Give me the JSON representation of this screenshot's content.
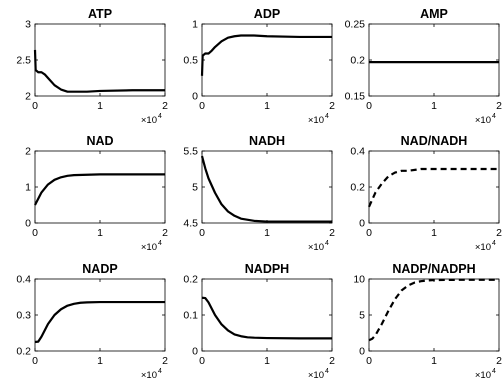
{
  "chart_data": [
    {
      "type": "line",
      "title": "ATP",
      "ylim": [
        2,
        3
      ],
      "yticks": [
        "2",
        "2.5",
        "3"
      ],
      "xlim": [
        0,
        2
      ],
      "xticks": [
        "0",
        "1",
        "2"
      ],
      "x_exponent": "×10",
      "x_exponent_power": "4",
      "series": [
        {
          "style": "solid",
          "x": [
            0,
            0.01,
            0.05,
            0.1,
            0.15,
            0.2,
            0.3,
            0.4,
            0.5,
            0.6,
            0.8,
            1,
            1.5,
            2
          ],
          "y": [
            2.64,
            2.36,
            2.33,
            2.33,
            2.3,
            2.25,
            2.15,
            2.09,
            2.06,
            2.06,
            2.06,
            2.07,
            2.08,
            2.08
          ]
        }
      ]
    },
    {
      "type": "line",
      "title": "ADP",
      "ylim": [
        0,
        1
      ],
      "yticks": [
        "0",
        "0.5",
        "1"
      ],
      "xlim": [
        0,
        2
      ],
      "xticks": [
        "0",
        "1",
        "2"
      ],
      "x_exponent": "×10",
      "x_exponent_power": "4",
      "series": [
        {
          "style": "solid",
          "x": [
            0,
            0.01,
            0.05,
            0.1,
            0.15,
            0.2,
            0.3,
            0.4,
            0.5,
            0.6,
            0.8,
            1,
            1.5,
            2
          ],
          "y": [
            0.28,
            0.56,
            0.59,
            0.59,
            0.63,
            0.68,
            0.76,
            0.81,
            0.83,
            0.84,
            0.84,
            0.83,
            0.82,
            0.82
          ]
        }
      ]
    },
    {
      "type": "line",
      "title": "AMP",
      "ylim": [
        0.15,
        0.25
      ],
      "yticks": [
        "0.15",
        "0.2",
        "0.25"
      ],
      "xlim": [
        0,
        2
      ],
      "xticks": [
        "0",
        "1",
        "2"
      ],
      "x_exponent": "×10",
      "x_exponent_power": "4",
      "series": [
        {
          "style": "solid",
          "x": [
            0,
            2
          ],
          "y": [
            0.197,
            0.197
          ]
        }
      ]
    },
    {
      "type": "line",
      "title": "NAD",
      "ylim": [
        0,
        2
      ],
      "yticks": [
        "0",
        "1",
        "2"
      ],
      "xlim": [
        0,
        2
      ],
      "xticks": [
        "0",
        "1",
        "2"
      ],
      "x_exponent": "×10",
      "x_exponent_power": "4",
      "series": [
        {
          "style": "solid",
          "x": [
            0,
            0.1,
            0.2,
            0.3,
            0.4,
            0.5,
            0.6,
            0.8,
            1,
            1.5,
            2
          ],
          "y": [
            0.5,
            0.85,
            1.07,
            1.2,
            1.27,
            1.31,
            1.33,
            1.34,
            1.35,
            1.35,
            1.35
          ]
        }
      ]
    },
    {
      "type": "line",
      "title": "NADH",
      "ylim": [
        4.5,
        5.5
      ],
      "yticks": [
        "4.5",
        "5",
        "5.5"
      ],
      "xlim": [
        0,
        2
      ],
      "xticks": [
        "0",
        "1",
        "2"
      ],
      "x_exponent": "×10",
      "x_exponent_power": "4",
      "series": [
        {
          "style": "solid",
          "x": [
            0,
            0.05,
            0.1,
            0.2,
            0.3,
            0.4,
            0.5,
            0.6,
            0.8,
            1,
            1.5,
            2
          ],
          "y": [
            5.43,
            5.26,
            5.12,
            4.92,
            4.76,
            4.66,
            4.6,
            4.56,
            4.53,
            4.52,
            4.52,
            4.52
          ]
        }
      ]
    },
    {
      "type": "line",
      "title": "NAD/NADH",
      "ylim": [
        0,
        0.4
      ],
      "yticks": [
        "0",
        "0.2",
        "0.4"
      ],
      "xlim": [
        0,
        2
      ],
      "xticks": [
        "0",
        "1",
        "2"
      ],
      "x_exponent": "×10",
      "x_exponent_power": "4",
      "series": [
        {
          "style": "dashed",
          "x": [
            0,
            0.1,
            0.2,
            0.3,
            0.4,
            0.5,
            0.6,
            0.8,
            1,
            1.5,
            2
          ],
          "y": [
            0.09,
            0.17,
            0.22,
            0.26,
            0.28,
            0.29,
            0.29,
            0.3,
            0.3,
            0.3,
            0.3
          ]
        }
      ]
    },
    {
      "type": "line",
      "title": "NADP",
      "ylim": [
        0.2,
        0.4
      ],
      "yticks": [
        "0.2",
        "0.3",
        "0.4"
      ],
      "xlim": [
        0,
        2
      ],
      "xticks": [
        "0",
        "1",
        "2"
      ],
      "x_exponent": "×10",
      "x_exponent_power": "4",
      "series": [
        {
          "style": "solid",
          "x": [
            0,
            0.05,
            0.1,
            0.2,
            0.3,
            0.4,
            0.5,
            0.6,
            0.7,
            0.8,
            1,
            1.5,
            2
          ],
          "y": [
            0.225,
            0.226,
            0.24,
            0.275,
            0.3,
            0.316,
            0.326,
            0.331,
            0.334,
            0.335,
            0.336,
            0.336,
            0.336
          ]
        }
      ]
    },
    {
      "type": "line",
      "title": "NADPH",
      "ylim": [
        0,
        0.2
      ],
      "yticks": [
        "0",
        "0.1",
        "0.2"
      ],
      "xlim": [
        0,
        2
      ],
      "xticks": [
        "0",
        "1",
        "2"
      ],
      "x_exponent": "×10",
      "x_exponent_power": "4",
      "series": [
        {
          "style": "solid",
          "x": [
            0,
            0.05,
            0.1,
            0.2,
            0.3,
            0.4,
            0.5,
            0.6,
            0.7,
            0.8,
            1,
            1.5,
            2
          ],
          "y": [
            0.148,
            0.147,
            0.135,
            0.1,
            0.074,
            0.057,
            0.046,
            0.041,
            0.038,
            0.037,
            0.036,
            0.035,
            0.035
          ]
        }
      ]
    },
    {
      "type": "line",
      "title": "NADP/NADPH",
      "ylim": [
        0,
        10
      ],
      "yticks": [
        "0",
        "5",
        "10"
      ],
      "xlim": [
        0,
        2
      ],
      "xticks": [
        "0",
        "1",
        "2"
      ],
      "x_exponent": "×10",
      "x_exponent_power": "4",
      "series": [
        {
          "style": "dashed",
          "x": [
            0,
            0.05,
            0.1,
            0.2,
            0.3,
            0.4,
            0.5,
            0.6,
            0.7,
            0.8,
            0.9,
            1,
            1.5,
            2
          ],
          "y": [
            1.5,
            1.7,
            2.2,
            3.8,
            5.6,
            7.2,
            8.4,
            9.1,
            9.5,
            9.7,
            9.8,
            9.85,
            9.9,
            9.9
          ]
        }
      ]
    }
  ]
}
